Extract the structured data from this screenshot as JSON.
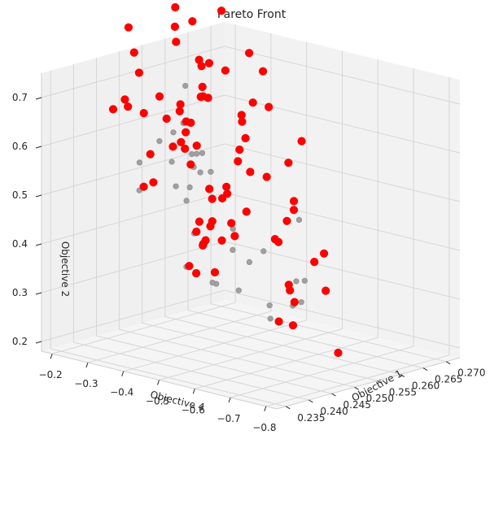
{
  "chart_data": {
    "type": "scatter",
    "projection": "3d",
    "title": "Pareto Front",
    "axes": {
      "x": {
        "label": "Objective 1",
        "range": [
          0.233,
          0.273
        ],
        "ticks": [
          "0.235",
          "0.240",
          "0.245",
          "0.250",
          "0.255",
          "0.260",
          "0.265",
          "0.270"
        ],
        "tick_values": [
          0.235,
          0.24,
          0.245,
          0.25,
          0.255,
          0.26,
          0.265,
          0.27
        ]
      },
      "y": {
        "label": "Objective 4",
        "range": [
          -0.83,
          -0.17
        ],
        "ticks": [
          "−0.8",
          "−0.7",
          "−0.6",
          "−0.5",
          "−0.4",
          "−0.3",
          "−0.2"
        ],
        "tick_values": [
          -0.8,
          -0.7,
          -0.6,
          -0.5,
          -0.4,
          -0.3,
          -0.2
        ]
      },
      "z": {
        "label": "Objective 2",
        "range": [
          0.18,
          0.75
        ],
        "ticks": [
          "0.2",
          "0.3",
          "0.4",
          "0.5",
          "0.6",
          "0.7"
        ],
        "tick_values": [
          0.2,
          0.3,
          0.4,
          0.5,
          0.6,
          0.7
        ]
      }
    },
    "grid": true,
    "colors": {
      "pareto": "#ff0000",
      "dominated": "#a0a0a0",
      "pane": "#f2f2f2",
      "grid": "#d6d6d6",
      "text": "#262626"
    },
    "series": [
      {
        "name": "",
        "color": "#a0a0a0",
        "points": [
          [
            0.249,
            -0.703,
            0.378
          ],
          [
            0.247,
            -0.713,
            0.51
          ],
          [
            0.259,
            -0.565,
            0.283
          ],
          [
            0.252,
            -0.549,
            0.403
          ],
          [
            0.264,
            -0.477,
            0.247
          ],
          [
            0.264,
            -0.414,
            0.209
          ],
          [
            0.267,
            -0.448,
            0.284
          ],
          [
            0.257,
            -0.445,
            0.349
          ],
          [
            0.266,
            -0.386,
            0.226
          ],
          [
            0.263,
            -0.338,
            0.256
          ],
          [
            0.258,
            -0.386,
            0.404
          ],
          [
            0.262,
            -0.334,
            0.341
          ],
          [
            0.248,
            -0.452,
            0.559
          ],
          [
            0.246,
            -0.43,
            0.57
          ],
          [
            0.245,
            -0.467,
            0.608
          ],
          [
            0.263,
            -0.275,
            0.258
          ],
          [
            0.257,
            -0.29,
            0.38
          ],
          [
            0.254,
            -0.307,
            0.458
          ],
          [
            0.254,
            -0.316,
            0.487
          ],
          [
            0.251,
            -0.374,
            0.574
          ],
          [
            0.252,
            -0.303,
            0.492
          ],
          [
            0.243,
            -0.445,
            0.747
          ],
          [
            0.247,
            -0.388,
            0.65
          ],
          [
            0.253,
            -0.335,
            0.561
          ],
          [
            0.255,
            -0.333,
            0.518
          ],
          [
            0.246,
            -0.373,
            0.631
          ],
          [
            0.246,
            -0.334,
            0.606
          ],
          [
            0.266,
            -0.226,
            0.244
          ],
          [
            0.249,
            -0.33,
            0.555
          ],
          [
            0.262,
            -0.204,
            0.283
          ],
          [
            0.249,
            -0.239,
            0.48
          ],
          [
            0.246,
            -0.278,
            0.552
          ]
        ]
      },
      {
        "name": "",
        "color": "#ff0000",
        "points": [
          [
            0.263,
            -0.617,
            0.178
          ],
          [
            0.254,
            -0.693,
            0.419
          ],
          [
            0.24,
            -0.81,
            0.707
          ],
          [
            0.24,
            -0.773,
            0.656
          ],
          [
            0.262,
            -0.595,
            0.304
          ],
          [
            0.256,
            -0.64,
            0.387
          ],
          [
            0.253,
            -0.621,
            0.498
          ],
          [
            0.261,
            -0.52,
            0.27
          ],
          [
            0.252,
            -0.634,
            0.521
          ],
          [
            0.257,
            -0.517,
            0.409
          ],
          [
            0.255,
            -0.576,
            0.462
          ],
          [
            0.26,
            -0.488,
            0.39
          ],
          [
            0.248,
            -0.615,
            0.721
          ],
          [
            0.243,
            -0.663,
            0.816
          ],
          [
            0.272,
            -0.335,
            0.168
          ],
          [
            0.246,
            -0.596,
            0.732
          ],
          [
            0.268,
            -0.426,
            0.187
          ],
          [
            0.267,
            -0.427,
            0.273
          ],
          [
            0.266,
            -0.443,
            0.267
          ],
          [
            0.253,
            -0.545,
            0.552
          ],
          [
            0.255,
            -0.473,
            0.544
          ],
          [
            0.249,
            -0.52,
            0.614
          ],
          [
            0.259,
            -0.411,
            0.441
          ],
          [
            0.25,
            -0.513,
            0.681
          ],
          [
            0.236,
            -0.714,
            0.881
          ],
          [
            0.258,
            -0.391,
            0.39
          ],
          [
            0.258,
            -0.37,
            0.473
          ],
          [
            0.24,
            -0.585,
            0.934
          ],
          [
            0.255,
            -0.45,
            0.643
          ],
          [
            0.258,
            -0.4,
            0.545
          ],
          [
            0.245,
            -0.483,
            0.724
          ],
          [
            0.247,
            -0.506,
            0.779
          ],
          [
            0.262,
            -0.33,
            0.395
          ],
          [
            0.26,
            -0.342,
            0.477
          ],
          [
            0.257,
            -0.434,
            0.601
          ],
          [
            0.257,
            -0.369,
            0.466
          ],
          [
            0.249,
            -0.383,
            0.559
          ],
          [
            0.26,
            -0.297,
            0.388
          ],
          [
            0.258,
            -0.328,
            0.409
          ],
          [
            0.259,
            -0.315,
            0.45
          ],
          [
            0.256,
            -0.31,
            0.566
          ],
          [
            0.246,
            -0.452,
            0.781
          ],
          [
            0.263,
            -0.271,
            0.281
          ],
          [
            0.248,
            -0.367,
            0.682
          ],
          [
            0.26,
            -0.294,
            0.464
          ],
          [
            0.249,
            -0.416,
            0.724
          ],
          [
            0.253,
            -0.36,
            0.683
          ],
          [
            0.243,
            -0.465,
            0.883
          ],
          [
            0.249,
            -0.356,
            0.6
          ],
          [
            0.26,
            -0.266,
            0.392
          ],
          [
            0.251,
            -0.392,
            0.695
          ],
          [
            0.25,
            -0.422,
            0.771
          ],
          [
            0.265,
            -0.265,
            0.34
          ],
          [
            0.244,
            -0.404,
            0.898
          ],
          [
            0.263,
            -0.245,
            0.342
          ],
          [
            0.252,
            -0.368,
            0.763
          ],
          [
            0.254,
            -0.269,
            0.562
          ],
          [
            0.254,
            -0.319,
            0.62
          ],
          [
            0.261,
            -0.245,
            0.365
          ],
          [
            0.264,
            -0.226,
            0.329
          ],
          [
            0.253,
            -0.319,
            0.625
          ],
          [
            0.254,
            -0.288,
            0.638
          ],
          [
            0.261,
            -0.263,
            0.34
          ],
          [
            0.249,
            -0.342,
            0.803
          ],
          [
            0.262,
            -0.212,
            0.286
          ],
          [
            0.244,
            -0.403,
            0.858
          ],
          [
            0.252,
            -0.257,
            0.668
          ],
          [
            0.252,
            -0.277,
            0.626
          ],
          [
            0.247,
            -0.25,
            0.77
          ],
          [
            0.255,
            -0.292,
            0.593
          ],
          [
            0.257,
            -0.264,
            0.549
          ],
          [
            0.265,
            -0.193,
            0.26
          ],
          [
            0.252,
            -0.213,
            0.626
          ],
          [
            0.254,
            -0.214,
            0.479
          ],
          [
            0.239,
            -0.337,
            0.858
          ],
          [
            0.247,
            -0.264,
            0.731
          ],
          [
            0.253,
            -0.2,
            0.47
          ],
          [
            0.249,
            -0.207,
            0.646
          ],
          [
            0.246,
            -0.204,
            0.648
          ],
          [
            0.247,
            -0.224,
            0.669
          ],
          [
            0.251,
            -0.244,
            0.55
          ]
        ]
      }
    ]
  }
}
